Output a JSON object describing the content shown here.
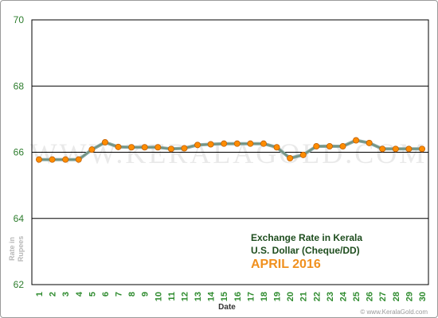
{
  "chart_data": {
    "type": "line",
    "title": "Exchange Rate in Kerala",
    "subtitle": "U.S. Dollar (Cheque/DD)",
    "period": "APRIL 2016",
    "xlabel": "Date",
    "ylabel_line1": "Rate in",
    "ylabel_line2": "Rupees",
    "watermark": "WWW.KERALAGOLD.COM",
    "credit": "© www.KeralaGold.com",
    "ylim": [
      62,
      70
    ],
    "yticks": [
      62,
      64,
      66,
      68,
      70
    ],
    "grid": true,
    "x": [
      1,
      2,
      3,
      4,
      5,
      6,
      7,
      8,
      9,
      10,
      11,
      12,
      13,
      14,
      15,
      16,
      17,
      18,
      19,
      20,
      21,
      22,
      23,
      24,
      25,
      26,
      27,
      28,
      29,
      30
    ],
    "values": [
      65.78,
      65.78,
      65.78,
      65.78,
      66.08,
      66.3,
      66.16,
      66.15,
      66.15,
      66.15,
      66.1,
      66.12,
      66.22,
      66.24,
      66.26,
      66.26,
      66.26,
      66.26,
      66.15,
      65.82,
      65.92,
      66.18,
      66.18,
      66.18,
      66.36,
      66.28,
      66.1,
      66.1,
      66.1,
      66.1
    ],
    "colors": {
      "line_outer": "#8aa8a4",
      "line_inner": "#6f8f7a",
      "marker_fill": "#ff8c00",
      "marker_stroke": "#c06000",
      "grid": "#000000",
      "axis_text": "#2e7d2e"
    }
  }
}
